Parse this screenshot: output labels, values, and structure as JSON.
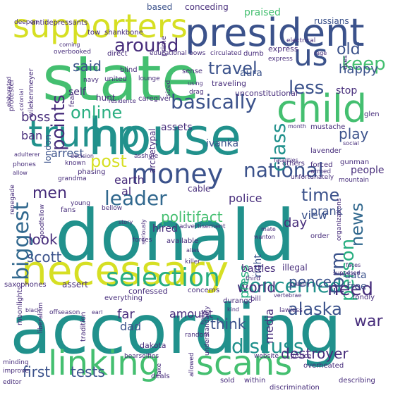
{
  "palette": {
    "yellow": "#d6df23",
    "lime": "#8fd744",
    "green": "#44bf70",
    "teal": "#21918c",
    "cyan": "#28ae80",
    "blue": "#31688e",
    "navy": "#3b528b",
    "purple": "#472d7b",
    "dark": "#440154"
  },
  "words": [
    "donald",
    "according",
    "house",
    "state",
    "necessary",
    "president",
    "linking",
    "scans",
    "selection",
    "trump",
    "supporters",
    "child",
    "money",
    "us",
    "concerned",
    "discuss",
    "keep",
    "national",
    "points",
    "class",
    "biggest",
    "basically",
    "around",
    "less",
    "online",
    "leader",
    "form",
    "news",
    "travel",
    "person",
    "men",
    "post",
    "politifact",
    "time",
    "need",
    "alaska",
    "world",
    "pence",
    "press",
    "said",
    "old",
    "happy",
    "play",
    "look",
    "scott",
    "think",
    "destroyer",
    "first",
    "tests",
    "war",
    "police",
    "media",
    "right",
    "day",
    "far",
    "dad",
    "amount",
    "boss",
    "arrest",
    "ban",
    "al",
    "earth",
    "self",
    "hunt",
    "prank",
    "hired",
    "view",
    "data",
    "free",
    "assets",
    "ivanka",
    "stop",
    "archetypal",
    "london",
    "cable",
    "people",
    "aura",
    "praised",
    "russians",
    "conceding",
    "based",
    "antidepressants",
    "deepen",
    "tow",
    "shankbone",
    "prime",
    "electrical",
    "educational",
    "bows",
    "circulated",
    "dumb",
    "express",
    "rage",
    "navy",
    "wilekenmeyer",
    "protester",
    "coming",
    "overbooked",
    "direct",
    "blind",
    "sense",
    "united",
    "lounge",
    "fear",
    "elaborated",
    "colonial",
    "residence",
    "caregiver",
    "sized",
    "unconstitutional",
    "drag",
    "traveling",
    "using",
    "glen",
    "mustache",
    "month",
    "adulterer",
    "phones",
    "allow",
    "decision",
    "phasing",
    "known",
    "grandma",
    "asshole",
    "lavender",
    "forced",
    "armed",
    "gunman",
    "mountain",
    "unfortunately",
    "others",
    "renegade",
    "young",
    "fans",
    "bellow",
    "goodfellow",
    "story",
    "seriously",
    "advertisement",
    "mate",
    "wanton",
    "order",
    "organizations",
    "available",
    "forces",
    "alias",
    "killer",
    "battles",
    "illegal",
    "faces",
    "supposed",
    "mainly",
    "saxophones",
    "assert",
    "confessed",
    "concerns",
    "third",
    "bill",
    "fondly",
    "moonlights",
    "everything",
    "tradition",
    "dakota",
    "kind",
    "durango",
    "vertebrae",
    "liberalism",
    "offseason",
    "earl",
    "black",
    "lawless",
    "hallie",
    "allowed",
    "website",
    "justice",
    "overheated",
    "random",
    "understandably",
    "bearselfies",
    "minding",
    "improve",
    "editor",
    "fake",
    "deals",
    "sold",
    "within",
    "discrimination",
    "describing",
    "fatalities",
    "social",
    "uses",
    "express"
  ]
}
